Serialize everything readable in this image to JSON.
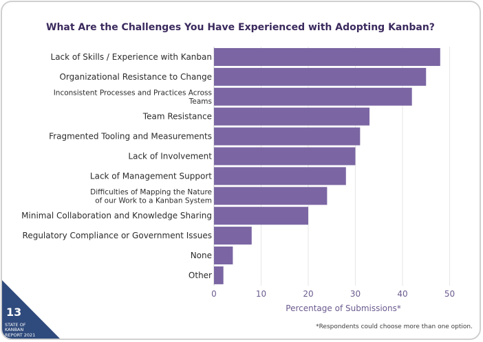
{
  "page": {
    "title": "What Are the Challenges You Have Experienced with Adopting Kanban?",
    "footnote": "*Respondents could choose more than one option.",
    "page_number": "13",
    "report_label": "STATE OF KANBAN REPORT 2021"
  },
  "colors": {
    "bar": "#7b66a3",
    "title": "#3b2a5e",
    "axis_text": "#6b5a8e",
    "grid": "#e6e6e6",
    "corner": "#2f4a7c"
  },
  "chart_data": {
    "type": "bar",
    "orientation": "horizontal",
    "title": "What Are the Challenges You Have Experienced with Adopting Kanban?",
    "xlabel": "Percentage of Submissions*",
    "ylabel": "",
    "xlim": [
      0,
      52
    ],
    "xticks": [
      0,
      10,
      20,
      30,
      40,
      50
    ],
    "grid": true,
    "categories": [
      [
        "Lack of Skills / Experience with Kanban"
      ],
      [
        "Organizational Resistance to Change"
      ],
      [
        "Inconsistent Processes and Practices Across",
        "Teams"
      ],
      [
        "Team Resistance"
      ],
      [
        "Fragmented Tooling and Measurements"
      ],
      [
        "Lack of Involvement"
      ],
      [
        "Lack of Management Support"
      ],
      [
        "Difficulties of Mapping the Nature",
        "of our Work to a Kanban System"
      ],
      [
        "Minimal Collaboration and Knowledge Sharing"
      ],
      [
        "Regulatory Compliance or Government Issues"
      ],
      [
        "None"
      ],
      [
        "Other"
      ]
    ],
    "values": [
      48,
      45,
      42,
      33,
      31,
      30,
      28,
      24,
      20,
      8,
      4,
      2
    ]
  }
}
